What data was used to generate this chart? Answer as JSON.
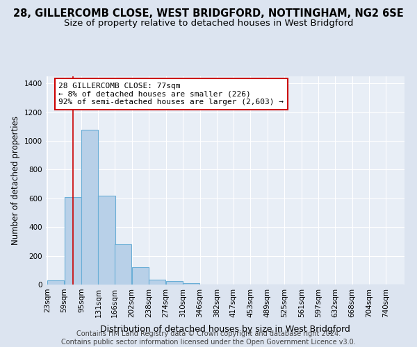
{
  "title": "28, GILLERCOMB CLOSE, WEST BRIDGFORD, NOTTINGHAM, NG2 6SE",
  "subtitle": "Size of property relative to detached houses in West Bridgford",
  "xlabel": "Distribution of detached houses by size in West Bridgford",
  "ylabel": "Number of detached properties",
  "footer_line1": "Contains HM Land Registry data © Crown copyright and database right 2024.",
  "footer_line2": "Contains public sector information licensed under the Open Government Licence v3.0.",
  "bar_labels": [
    "23sqm",
    "59sqm",
    "95sqm",
    "131sqm",
    "166sqm",
    "202sqm",
    "238sqm",
    "274sqm",
    "310sqm",
    "346sqm",
    "382sqm",
    "417sqm",
    "453sqm",
    "489sqm",
    "525sqm",
    "561sqm",
    "597sqm",
    "632sqm",
    "668sqm",
    "704sqm",
    "740sqm"
  ],
  "bar_values": [
    30,
    610,
    1080,
    620,
    280,
    120,
    35,
    25,
    10,
    2,
    0,
    0,
    0,
    0,
    0,
    0,
    0,
    0,
    0,
    0,
    0
  ],
  "bar_color": "#b8d0e8",
  "bar_edge_color": "#6aaed6",
  "background_color": "#dce4f0",
  "plot_bg_color": "#e8eef6",
  "grid_color": "#ffffff",
  "vline_x": 77,
  "vline_color": "#cc0000",
  "annotation_text": "28 GILLERCOMB CLOSE: 77sqm\n← 8% of detached houses are smaller (226)\n92% of semi-detached houses are larger (2,603) →",
  "annotation_box_facecolor": "#ffffff",
  "annotation_box_edgecolor": "#cc0000",
  "ylim": [
    0,
    1450
  ],
  "yticks": [
    0,
    200,
    400,
    600,
    800,
    1000,
    1200,
    1400
  ],
  "title_fontsize": 10.5,
  "subtitle_fontsize": 9.5,
  "xlabel_fontsize": 9,
  "ylabel_fontsize": 8.5,
  "tick_fontsize": 7.5,
  "annotation_fontsize": 8,
  "footer_fontsize": 7,
  "bin_width": 36
}
